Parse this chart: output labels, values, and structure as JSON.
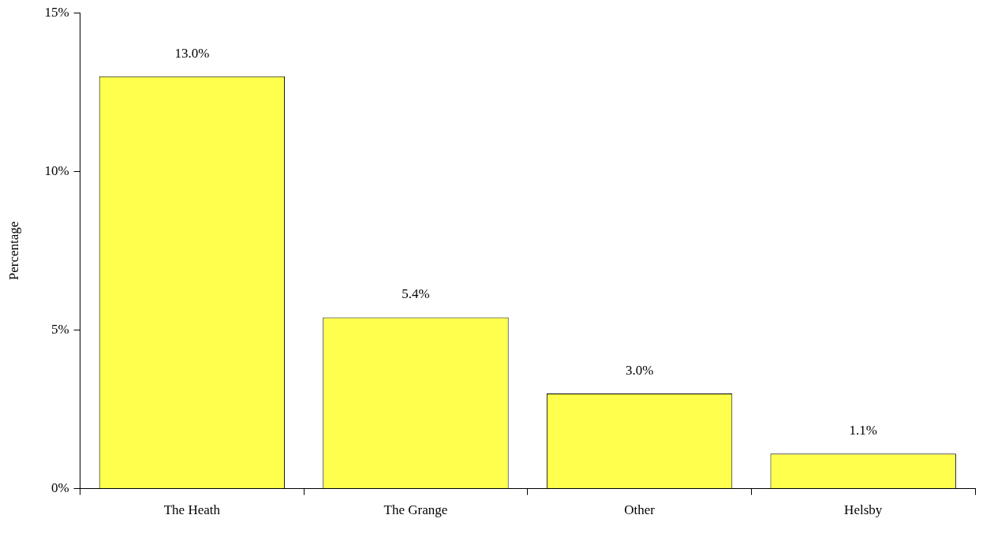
{
  "chart_data": {
    "type": "bar",
    "ylabel": "Percentage",
    "categories": [
      "The Heath",
      "The Grange",
      "Other",
      "Helsby"
    ],
    "values": [
      13.0,
      5.4,
      3.0,
      1.1
    ],
    "value_labels": [
      "13.0%",
      "5.4%",
      "3.0%",
      "1.1%"
    ],
    "color": "#ffff4d",
    "ylim": [
      0,
      15
    ],
    "yticks": [
      {
        "value": 0,
        "label": "0%"
      },
      {
        "value": 5,
        "label": "5%"
      },
      {
        "value": 10,
        "label": "10%"
      },
      {
        "value": 15,
        "label": "15%"
      }
    ],
    "grid": false,
    "legend": false
  }
}
